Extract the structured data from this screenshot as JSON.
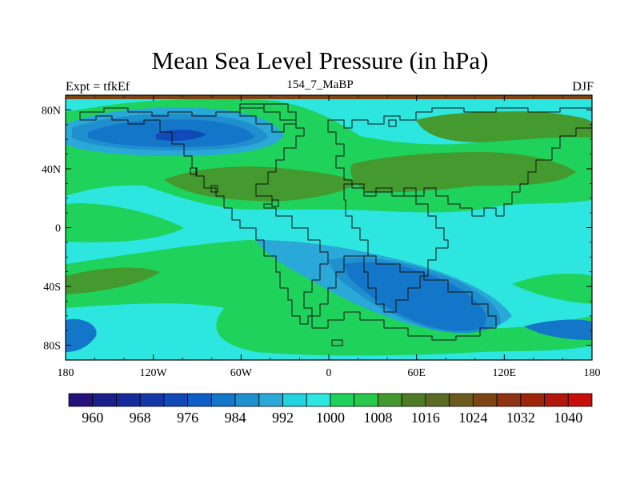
{
  "title": "Mean Sea Level Pressure (in hPa)",
  "left_label": "Expt = tfkEf",
  "center_label": "154_7_MaBP",
  "right_label": "DJF",
  "x_ticks": [
    "180",
    "120W",
    "60W",
    "0",
    "60E",
    "120E",
    "180"
  ],
  "y_ticks": [
    "80N",
    "40N",
    "0",
    "40S",
    "80S"
  ],
  "colorbar": {
    "labels": [
      "960",
      "968",
      "976",
      "984",
      "992",
      "1000",
      "1008",
      "1016",
      "1024",
      "1032",
      "1040"
    ],
    "colors": [
      "#24127a",
      "#1a1f8c",
      "#18299c",
      "#1437aa",
      "#1249b9",
      "#0d5fc5",
      "#1476c8",
      "#1f8fce",
      "#2aa8d8",
      "#22d3e0",
      "#2de6e0",
      "#1ed25c",
      "#28c84b",
      "#449a2e",
      "#507c28",
      "#5c6a24",
      "#6a5a1e",
      "#7d4515",
      "#8e3410",
      "#9f260c",
      "#b2170c",
      "#c80d0d"
    ]
  },
  "field_colors": {
    "very_low": "#1437aa",
    "low": "#1f8fce",
    "mid_low": "#2aa8d8",
    "near_normal": "#2de6e0",
    "normal_high": "#1ed25c",
    "high": "#449a2e",
    "very_high": "#5c6a24",
    "strip": "#7d4515"
  }
}
